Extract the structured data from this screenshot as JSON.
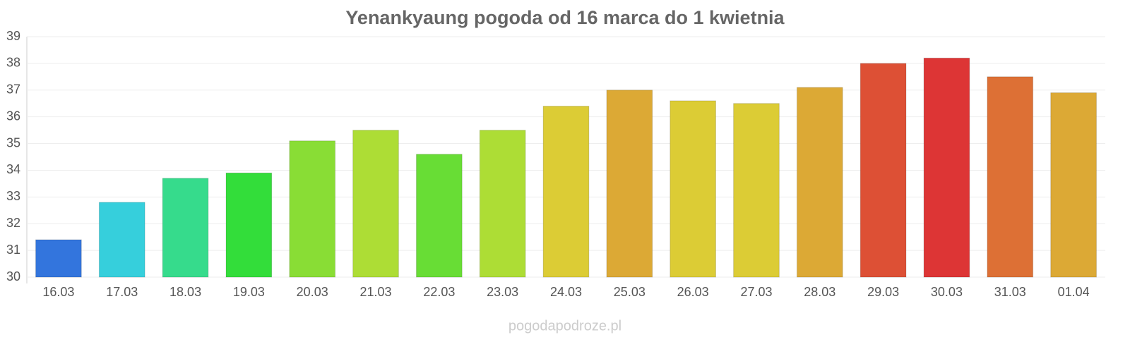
{
  "chart_data": {
    "type": "bar",
    "title": "Yenankyaung pogoda od 16 marca do 1 kwietnia",
    "categories": [
      "16.03",
      "17.03",
      "18.03",
      "19.03",
      "20.03",
      "21.03",
      "22.03",
      "23.03",
      "24.03",
      "25.03",
      "26.03",
      "27.03",
      "28.03",
      "29.03",
      "30.03",
      "31.03",
      "01.04"
    ],
    "values": [
      31.4,
      32.8,
      33.7,
      33.9,
      35.1,
      35.5,
      34.6,
      35.5,
      36.4,
      37.0,
      36.6,
      36.5,
      37.1,
      38.0,
      38.2,
      37.5,
      36.9
    ],
    "colors": [
      "#3375dd",
      "#36cfdc",
      "#36db8c",
      "#33dd3a",
      "#89dd35",
      "#addd35",
      "#68dd35",
      "#addd35",
      "#dccc35",
      "#dca935",
      "#dccc35",
      "#dccc35",
      "#dca935",
      "#dd5035",
      "#dd3535",
      "#dd7035",
      "#dca935"
    ],
    "ylim": [
      30,
      39
    ],
    "yticks": [
      30,
      31,
      32,
      33,
      34,
      35,
      36,
      37,
      38,
      39
    ],
    "grid": true
  },
  "footer": "pogodapodroze.pl"
}
